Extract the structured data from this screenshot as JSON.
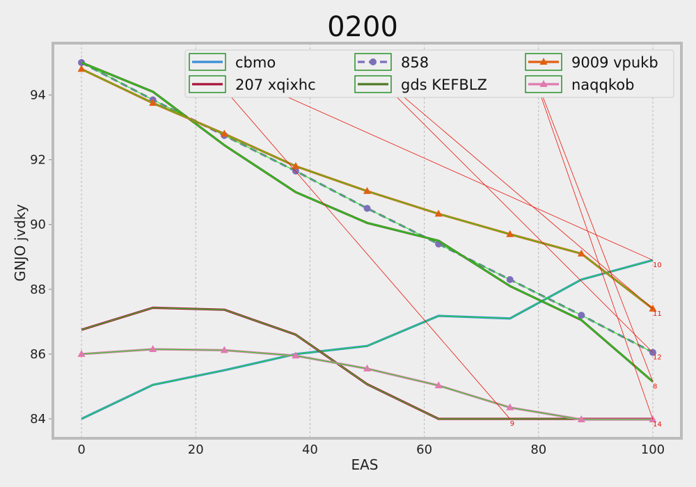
{
  "chart_data": {
    "type": "line",
    "title": "0200",
    "xlabel": "EAS",
    "ylabel": "GNJO jvdky",
    "xlim": [
      -5,
      105
    ],
    "ylim": [
      83.4,
      95.6
    ],
    "xticks": [
      0,
      20,
      40,
      60,
      80,
      100
    ],
    "yticks": [
      84,
      86,
      88,
      90,
      92,
      94
    ],
    "grid": "x-vertical-dashed",
    "legend_position": "top-right",
    "x": [
      0,
      12.5,
      25,
      37.5,
      50,
      62.5,
      75,
      87.5,
      100
    ],
    "series": [
      {
        "name": "cbmo",
        "color": "#3a8fd6",
        "dash": "",
        "marker": "none",
        "values": [
          84.0,
          85.05,
          85.5,
          86.0,
          86.25,
          87.18,
          87.1,
          88.3,
          88.9
        ]
      },
      {
        "name": "207 xqixhc",
        "color": "#a8123a",
        "dash": "",
        "marker": "none",
        "values": [
          86.75,
          87.43,
          87.37,
          86.6,
          85.07,
          84.0,
          84.0,
          84.0,
          84.0
        ]
      },
      {
        "name": "858",
        "color": "#7b70b8",
        "dash": "10,6",
        "marker": "circle",
        "values": [
          95.0,
          93.85,
          92.75,
          91.65,
          90.5,
          89.4,
          88.3,
          87.2,
          86.05
        ]
      },
      {
        "name": "gds KEFBLZ",
        "color": "#4f7a26",
        "dash": "",
        "marker": "none",
        "values": [
          95.0,
          94.1,
          92.45,
          91.0,
          90.05,
          89.5,
          88.1,
          87.05,
          85.15
        ]
      },
      {
        "name": "9009 vpukb",
        "color": "#e06012",
        "dash": "",
        "marker": "triangle",
        "values": [
          94.8,
          93.75,
          92.8,
          91.8,
          91.03,
          90.33,
          89.7,
          89.1,
          87.4
        ]
      },
      {
        "name": "naqqkob",
        "color": "#e07ab0",
        "dash": "",
        "marker": "triangle",
        "values": [
          86.0,
          86.15,
          86.12,
          85.95,
          85.55,
          85.03,
          84.35,
          83.98,
          83.98
        ]
      }
    ],
    "highlight_color": "#22dd22",
    "annotations": [
      {
        "text": "9",
        "x": 75,
        "y": 84.0,
        "from": [
          20,
          95.2
        ]
      },
      {
        "text": "10",
        "x": 100,
        "y": 88.9,
        "from": [
          20,
          95.2
        ]
      },
      {
        "text": "11",
        "x": 100,
        "y": 87.4,
        "from": [
          48,
          95.2
        ]
      },
      {
        "text": "12",
        "x": 100,
        "y": 86.05,
        "from": [
          48,
          95.2
        ]
      },
      {
        "text": "8",
        "x": 100,
        "y": 85.15,
        "from": [
          78,
          95.2
        ]
      },
      {
        "text": "14",
        "x": 100,
        "y": 83.98,
        "from": [
          78,
          95.2
        ]
      }
    ]
  }
}
